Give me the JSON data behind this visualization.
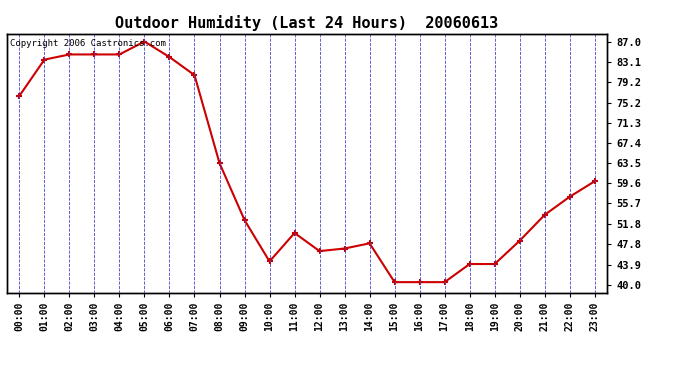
{
  "title": "Outdoor Humidity (Last 24 Hours)  20060613",
  "copyright_text": "Copyright 2006 Castronics.com",
  "x_labels": [
    "00:00",
    "01:00",
    "02:00",
    "03:00",
    "04:00",
    "05:00",
    "06:00",
    "07:00",
    "08:00",
    "09:00",
    "10:00",
    "11:00",
    "12:00",
    "13:00",
    "14:00",
    "15:00",
    "16:00",
    "17:00",
    "18:00",
    "19:00",
    "20:00",
    "21:00",
    "22:00",
    "23:00"
  ],
  "x_values": [
    0,
    1,
    2,
    3,
    4,
    5,
    6,
    7,
    8,
    9,
    10,
    11,
    12,
    13,
    14,
    15,
    16,
    17,
    18,
    19,
    20,
    21,
    22,
    23
  ],
  "y_values": [
    76.5,
    83.5,
    84.5,
    84.5,
    84.5,
    87.0,
    84.0,
    80.5,
    63.5,
    52.5,
    44.5,
    50.0,
    46.5,
    47.0,
    48.0,
    40.5,
    40.5,
    40.5,
    44.0,
    44.0,
    48.5,
    53.5,
    57.0,
    60.0
  ],
  "y_ticks": [
    40.0,
    43.9,
    47.8,
    51.8,
    55.7,
    59.6,
    63.5,
    67.4,
    71.3,
    75.2,
    79.2,
    83.1,
    87.0
  ],
  "ylim": [
    38.5,
    88.5
  ],
  "line_color": "#cc0000",
  "marker_color": "#cc0000",
  "bg_color": "#ffffff",
  "plot_bg_color": "#ffffff",
  "grid_color": "#4444cc",
  "border_color": "#000000",
  "title_fontsize": 11,
  "copyright_fontsize": 6.5,
  "tick_fontsize": 7,
  "ytick_fontsize": 7.5
}
